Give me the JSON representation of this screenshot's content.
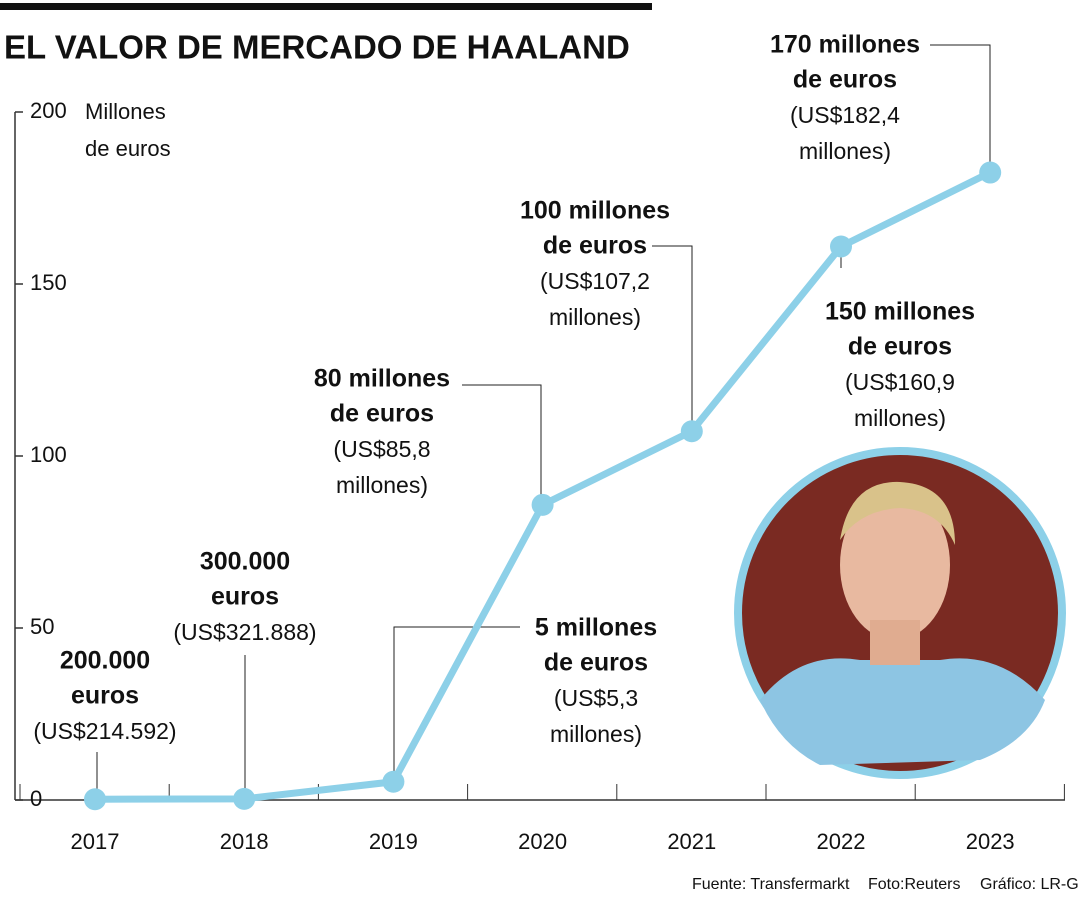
{
  "chart_data": {
    "type": "line",
    "title": "EL VALOR DE MERCADO DE HAALAND",
    "y_label": [
      "Millones",
      "de euros"
    ],
    "categories": [
      "2017",
      "2018",
      "2019",
      "2020",
      "2021",
      "2022",
      "2023"
    ],
    "series": [
      {
        "color": "#8dd0e8",
        "values": [
          0.214592,
          0.321888,
          5.3,
          85.8,
          107.2,
          160.9,
          182.4
        ]
      }
    ],
    "ylim": [
      0,
      200
    ],
    "yticks": [
      0,
      50,
      100,
      150,
      200
    ],
    "annotations": [
      {
        "lines": [
          "200.000",
          "euros"
        ],
        "detail": [
          "(US$214.592)"
        ]
      },
      {
        "lines": [
          "300.000",
          "euros"
        ],
        "detail": [
          "(US$321.888)"
        ]
      },
      {
        "lines": [
          "5 millones",
          "de euros"
        ],
        "detail": [
          "(US$5,3",
          "millones)"
        ]
      },
      {
        "lines": [
          "80 millones",
          "de euros"
        ],
        "detail": [
          "(US$85,8",
          "millones)"
        ]
      },
      {
        "lines": [
          "100 millones",
          "de euros"
        ],
        "detail": [
          "(US$107,2",
          "millones)"
        ]
      },
      {
        "lines": [
          "150 millones",
          "de euros"
        ],
        "detail": [
          "(US$160,9",
          "millones)"
        ]
      },
      {
        "lines": [
          "170 millones",
          "de euros"
        ],
        "detail": [
          "(US$182,4",
          "millones)"
        ]
      }
    ],
    "footer": [
      "Fuente: Transfermarkt",
      "Foto:Reuters",
      "Gráfico: LR-GR"
    ]
  }
}
